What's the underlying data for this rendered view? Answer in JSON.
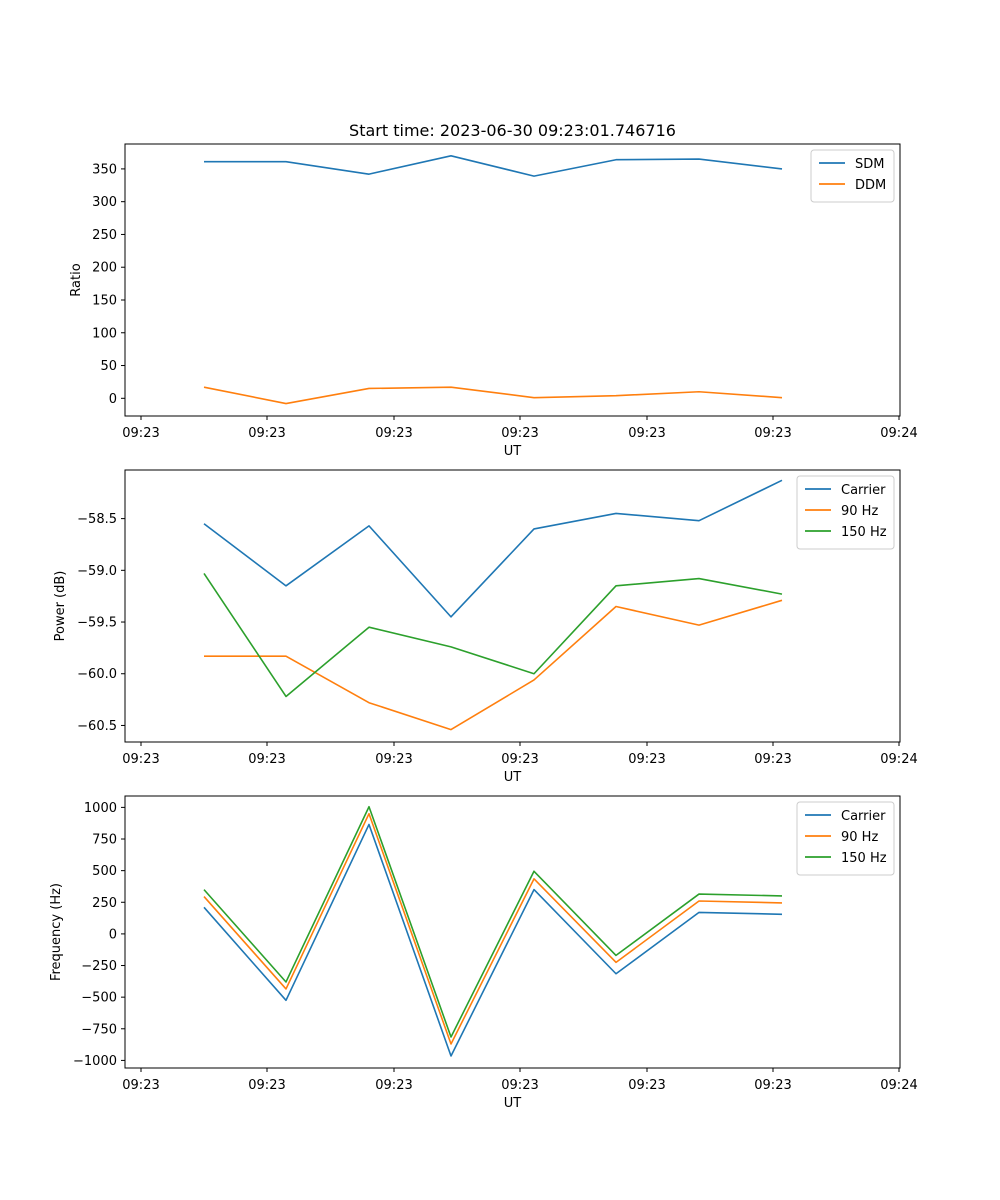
{
  "figure": {
    "title": "Start time: 2023-06-30 09:23:01.746716"
  },
  "chart_data": [
    {
      "type": "line",
      "xlabel": "UT",
      "ylabel": "Ratio",
      "x": [
        "09:23",
        "09:23",
        "09:23",
        "09:23",
        "09:23",
        "09:23",
        "09:23",
        "09:23"
      ],
      "xticks": [
        "09:23",
        "09:23",
        "09:23",
        "09:23",
        "09:23",
        "09:23",
        "09:24"
      ],
      "ylim": [
        -27,
        388
      ],
      "yticks": [
        0,
        50,
        100,
        150,
        200,
        250,
        300,
        350
      ],
      "legend_position": "top-right",
      "series": [
        {
          "name": "SDM",
          "color": "#1f77b4",
          "values": [
            361,
            361,
            342,
            370,
            339,
            364,
            365,
            350
          ]
        },
        {
          "name": "DDM",
          "color": "#ff7f0e",
          "values": [
            17,
            -8,
            15,
            17,
            1,
            4,
            10,
            1
          ]
        }
      ]
    },
    {
      "type": "line",
      "xlabel": "UT",
      "ylabel": "Power (dB)",
      "x": [
        "09:23",
        "09:23",
        "09:23",
        "09:23",
        "09:23",
        "09:23",
        "09:23",
        "09:23"
      ],
      "xticks": [
        "09:23",
        "09:23",
        "09:23",
        "09:23",
        "09:23",
        "09:23",
        "09:24"
      ],
      "ylim": [
        -60.66,
        -58.03
      ],
      "yticks": [
        -60.5,
        -60.0,
        -59.5,
        -59.0,
        -58.5
      ],
      "ytick_labels": [
        "−60.5",
        "−60.0",
        "−59.5",
        "−59.0",
        "−58.5"
      ],
      "legend_position": "top-right",
      "series": [
        {
          "name": "Carrier",
          "color": "#1f77b4",
          "values": [
            -58.55,
            -59.15,
            -58.57,
            -59.45,
            -58.6,
            -58.45,
            -58.52,
            -58.13
          ]
        },
        {
          "name": "90 Hz",
          "color": "#ff7f0e",
          "values": [
            -59.83,
            -59.83,
            -60.28,
            -60.54,
            -60.06,
            -59.35,
            -59.53,
            -59.29
          ]
        },
        {
          "name": "150 Hz",
          "color": "#2ca02c",
          "values": [
            -59.03,
            -60.22,
            -59.55,
            -59.74,
            -60.0,
            -59.15,
            -59.08,
            -59.23
          ]
        }
      ]
    },
    {
      "type": "line",
      "xlabel": "UT",
      "ylabel": "Frequency (Hz)",
      "x": [
        "09:23",
        "09:23",
        "09:23",
        "09:23",
        "09:23",
        "09:23",
        "09:23",
        "09:23"
      ],
      "xticks": [
        "09:23",
        "09:23",
        "09:23",
        "09:23",
        "09:23",
        "09:23",
        "09:24"
      ],
      "ylim": [
        -1060,
        1090
      ],
      "yticks": [
        -1000,
        -750,
        -500,
        -250,
        0,
        250,
        500,
        750,
        1000
      ],
      "ytick_labels": [
        "−1000",
        "−750",
        "−500",
        "−250",
        "0",
        "250",
        "500",
        "750",
        "1000"
      ],
      "legend_position": "top-right",
      "series": [
        {
          "name": "Carrier",
          "color": "#1f77b4",
          "values": [
            210,
            -525,
            865,
            -965,
            350,
            -315,
            170,
            155
          ]
        },
        {
          "name": "90 Hz",
          "color": "#ff7f0e",
          "values": [
            295,
            -435,
            950,
            -870,
            435,
            -225,
            260,
            245
          ]
        },
        {
          "name": "150 Hz",
          "color": "#2ca02c",
          "values": [
            350,
            -380,
            1005,
            -815,
            495,
            -170,
            315,
            300
          ]
        }
      ]
    }
  ]
}
